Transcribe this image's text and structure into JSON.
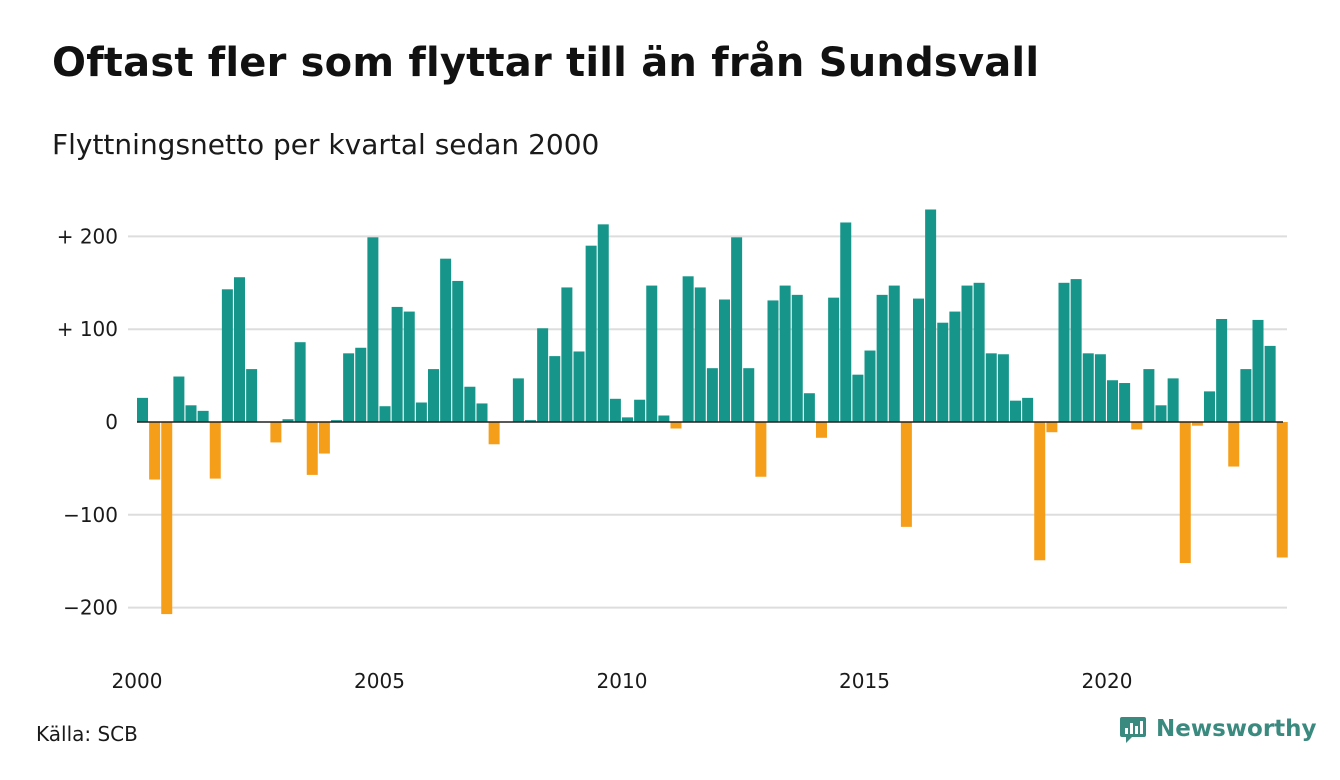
{
  "title": "Oftast fler som flyttar till än från Sundsvall",
  "subtitle": "Flyttningsnetto per kvartal sedan 2000",
  "source": "Källa: SCB",
  "brand": "Newsworthy",
  "colors": {
    "positive": "#16968a",
    "negative": "#f59e1a",
    "grid": "#dddddd",
    "zero_line": "#222222",
    "brand": "#3b8a80"
  },
  "chart_data": {
    "type": "bar",
    "x_start": "2000 Q1",
    "quarters_per_year": 4,
    "values": [
      26,
      -62,
      -207,
      49,
      18,
      12,
      -61,
      143,
      156,
      57,
      0,
      -22,
      3,
      86,
      -57,
      -34,
      2,
      74,
      80,
      199,
      17,
      124,
      119,
      21,
      57,
      176,
      152,
      38,
      20,
      -24,
      0,
      47,
      2,
      101,
      71,
      145,
      76,
      190,
      213,
      25,
      5,
      24,
      147,
      7,
      -7,
      157,
      145,
      58,
      132,
      199,
      58,
      -59,
      131,
      147,
      137,
      31,
      -17,
      134,
      215,
      51,
      77,
      137,
      147,
      -113,
      133,
      229,
      107,
      119,
      147,
      150,
      74,
      73,
      23,
      26,
      -149,
      -11,
      150,
      154,
      74,
      73,
      45,
      42,
      -8,
      57,
      18,
      47,
      -152,
      -4,
      33,
      111,
      -48,
      57,
      110,
      82,
      -146
    ],
    "ylim": [
      -230,
      240
    ],
    "y_ticks": [
      200,
      100,
      0,
      -100,
      -200
    ],
    "y_tick_labels": [
      "+ 200",
      "+ 100",
      "0",
      "−100",
      "−200"
    ],
    "x_tick_labels": [
      "2000",
      "2005",
      "2010",
      "2015",
      "2020"
    ],
    "grid": true,
    "legend": "none"
  }
}
